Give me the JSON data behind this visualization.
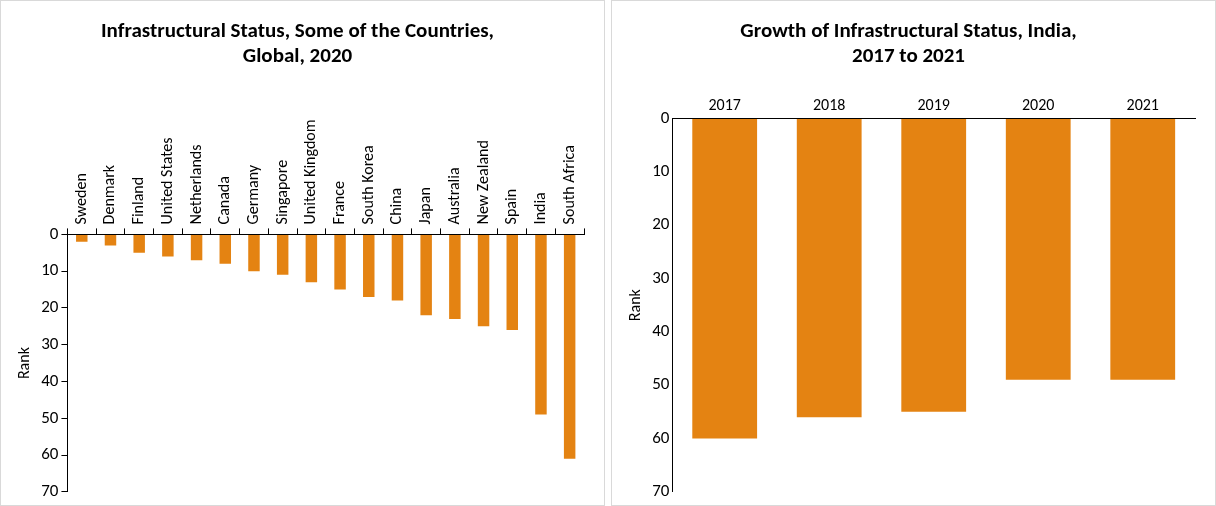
{
  "chart_data": [
    {
      "type": "bar",
      "title": "Infrastructural Status, Some of the Countries, Global, 2020",
      "ylabel": "Rank",
      "categories": [
        "Sweden",
        "Denmark",
        "Finland",
        "United States",
        "Netherlands",
        "Canada",
        "Germany",
        "Singapore",
        "United Kingdom",
        "France",
        "South Korea",
        "China",
        "Japan",
        "Australia",
        "New Zealand",
        "Spain",
        "India",
        "South Africa"
      ],
      "values": [
        2,
        3,
        5,
        6,
        7,
        8,
        10,
        11,
        13,
        15,
        17,
        18,
        22,
        23,
        25,
        26,
        49,
        61
      ],
      "color": "#e48312",
      "ylim": [
        70,
        0
      ],
      "yticks": [
        0,
        10,
        20,
        30,
        40,
        50,
        60,
        70
      ],
      "grid": false,
      "legend": false
    },
    {
      "type": "bar",
      "title": "Growth of Infrastructural Status, India, 2017 to 2021",
      "ylabel": "Rank",
      "categories": [
        "2017",
        "2018",
        "2019",
        "2020",
        "2021"
      ],
      "values": [
        60,
        56,
        55,
        49,
        49
      ],
      "color": "#e48312",
      "ylim": [
        70,
        0
      ],
      "yticks": [
        0,
        10,
        20,
        30,
        40,
        50,
        60,
        70
      ],
      "grid": false,
      "legend": false
    }
  ]
}
